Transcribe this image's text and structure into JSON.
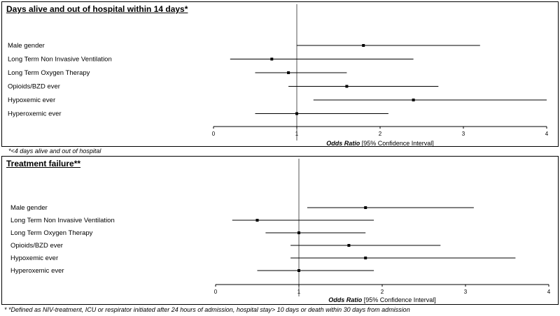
{
  "chart_data": [
    {
      "type": "forest",
      "title": "Days alive and out of hospital within 14 days*",
      "xlabel_italic": "Odds Ratio",
      "xlabel_rest": " [95% Confidence Interval]",
      "xlim": [
        0,
        4
      ],
      "ticks": [
        "0",
        "1",
        "2",
        "3",
        "4"
      ],
      "reference_line": 1,
      "rows": [
        {
          "label": "Male gender",
          "or": 1.8,
          "lo": 1.0,
          "hi": 3.2
        },
        {
          "label": "Long Term Non Invasive Ventilation",
          "or": 0.7,
          "lo": 0.2,
          "hi": 2.4
        },
        {
          "label": "Long Term Oxygen Therapy",
          "or": 0.9,
          "lo": 0.5,
          "hi": 1.6
        },
        {
          "label": "Opioids/BZD ever",
          "or": 1.6,
          "lo": 0.9,
          "hi": 2.7
        },
        {
          "label": "Hypoxemic ever",
          "or": 2.4,
          "lo": 1.2,
          "hi": 4.0
        },
        {
          "label": "Hyperoxemic ever",
          "or": 1.0,
          "lo": 0.5,
          "hi": 2.1
        }
      ],
      "footnote": "*<4 days alive and out of hospital"
    },
    {
      "type": "forest",
      "title": "Treatment failure**",
      "xlabel_italic": "Odds Ratio",
      "xlabel_rest": " [95% Confidence Interval]",
      "xlim": [
        0,
        4
      ],
      "ticks": [
        "0",
        "1",
        "2",
        "3",
        "4"
      ],
      "reference_line": 1,
      "rows": [
        {
          "label": "Male gender",
          "or": 1.8,
          "lo": 1.1,
          "hi": 3.1
        },
        {
          "label": "Long Term Non Invasive Ventilation",
          "or": 0.5,
          "lo": 0.2,
          "hi": 1.9
        },
        {
          "label": "Long Term Oxygen Therapy",
          "or": 1.0,
          "lo": 0.6,
          "hi": 1.8
        },
        {
          "label": "Opioids/BZD ever",
          "or": 1.6,
          "lo": 0.9,
          "hi": 2.7
        },
        {
          "label": "Hypoxemic ever",
          "or": 1.8,
          "lo": 0.9,
          "hi": 3.6
        },
        {
          "label": "Hyperoxemic ever",
          "or": 1.0,
          "lo": 0.5,
          "hi": 1.9
        }
      ],
      "footnote": "* *Defined as NIV-treatment, ICU or respirator initiated after 24 hours of admission,  hospital stay> 10 days or death within 30 days from admission"
    }
  ]
}
